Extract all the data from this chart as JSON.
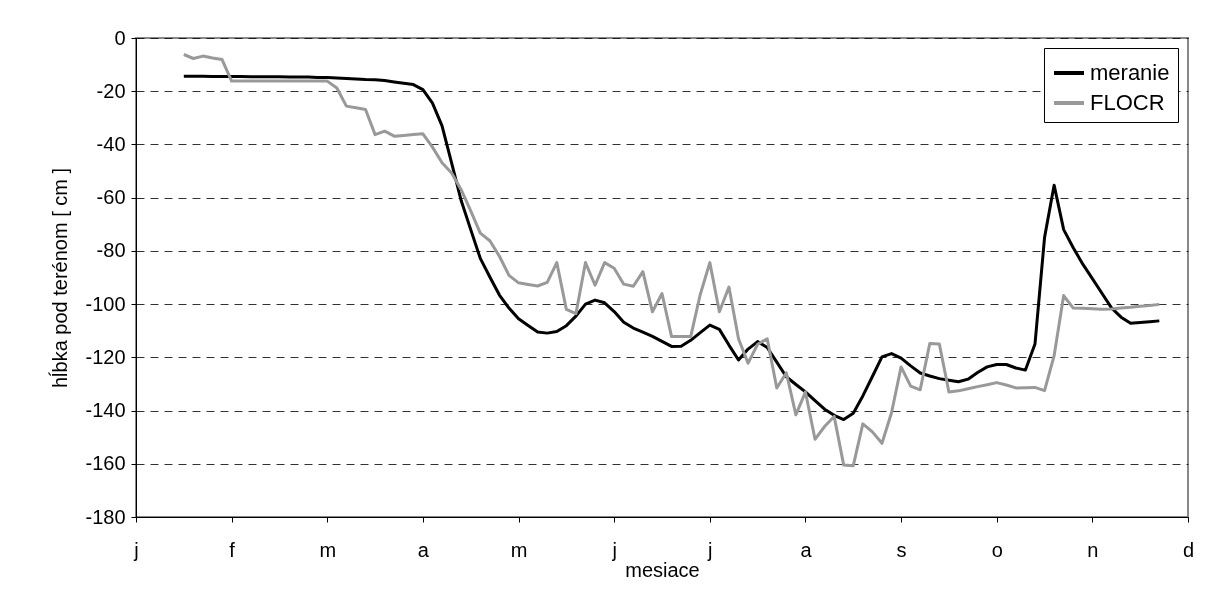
{
  "chart_data": {
    "type": "line",
    "xlabel": "mesiace",
    "ylabel": "hĺbka pod terénom [ cm ]",
    "categories": [
      "j",
      null,
      null,
      null,
      null,
      null,
      null,
      null,
      null,
      null,
      "f",
      null,
      null,
      null,
      null,
      null,
      null,
      null,
      null,
      null,
      "m",
      null,
      null,
      null,
      null,
      null,
      null,
      null,
      null,
      null,
      "a",
      null,
      null,
      null,
      null,
      null,
      null,
      null,
      null,
      null,
      "m",
      null,
      null,
      null,
      null,
      null,
      null,
      null,
      null,
      null,
      "j",
      null,
      null,
      null,
      null,
      null,
      null,
      null,
      null,
      null,
      "j",
      null,
      null,
      null,
      null,
      null,
      null,
      null,
      null,
      null,
      "a",
      null,
      null,
      null,
      null,
      null,
      null,
      null,
      null,
      null,
      "s",
      null,
      null,
      null,
      null,
      null,
      null,
      null,
      null,
      null,
      "o",
      null,
      null,
      null,
      null,
      null,
      null,
      null,
      null,
      null,
      "n",
      null,
      null,
      null,
      null,
      null,
      null,
      null,
      null,
      null,
      "d"
    ],
    "ylim": [
      -180,
      0
    ],
    "yticks": [
      -180,
      -160,
      -140,
      -120,
      -100,
      -80,
      -60,
      -40,
      -20,
      0
    ],
    "grid": "y",
    "legend": "top right",
    "marker": "none",
    "line_style": "solid",
    "series": [
      {
        "name": "meranie",
        "color": "#000000",
        "values": [
          null,
          null,
          null,
          null,
          null,
          -14.4,
          -14.4,
          -14.4,
          -14.5,
          -14.5,
          -14.5,
          -14.5,
          -14.6,
          -14.6,
          -14.6,
          -14.6,
          -14.7,
          -14.7,
          -14.7,
          -14.8,
          -14.8,
          -15.0,
          -15.2,
          -15.4,
          -15.6,
          -15.7,
          -16.0,
          -16.5,
          -17.0,
          -17.5,
          -19.4,
          -24.5,
          -33,
          -46.9,
          -61.1,
          -72,
          -82.8,
          -89.8,
          -96.6,
          -101.5,
          -105.5,
          -108,
          -110.5,
          -110.9,
          -110.3,
          -108.1,
          -104.5,
          -100,
          -98.5,
          -99.5,
          -102.8,
          -106.8,
          -109,
          -110.5,
          -112.1,
          -114,
          -115.9,
          -115.8,
          -113.6,
          -110.7,
          -107.9,
          -109.5,
          -115.4,
          -121,
          -116.9,
          -114.1,
          -116.3,
          -121.8,
          -127.3,
          -130.2,
          -133,
          -136.3,
          -139.5,
          -141.8,
          -143.4,
          -141,
          -134.5,
          -127.2,
          -119.8,
          -118.6,
          -120.3,
          -123.2,
          -125.9,
          -127,
          -128,
          -128.6,
          -129.2,
          -128.2,
          -125.7,
          -123.6,
          -122.7,
          -122.7,
          -124,
          -124.8,
          -115,
          -75,
          -55.3,
          -72,
          -78.8,
          -85,
          -90.4,
          -95.9,
          -101.4,
          -104.9,
          -107.2,
          -106.9,
          -106.6,
          -106.3,
          null,
          null,
          null
        ]
      },
      {
        "name": "FLOCR",
        "color": "#999999",
        "values": [
          null,
          null,
          null,
          null,
          null,
          -6.2,
          -7.7,
          -6.8,
          -7.5,
          -8.1,
          -16.2,
          -16.2,
          -16.2,
          -16.2,
          -16.2,
          -16.2,
          -16.2,
          -16.2,
          -16.2,
          -16.2,
          -16.2,
          -18.8,
          -25.6,
          -26.2,
          -26.9,
          -36.3,
          -35,
          -36.9,
          -36.6,
          -36.3,
          -36,
          -41,
          -46.9,
          -50.7,
          -57,
          -65,
          -73.3,
          -76.2,
          -82,
          -89.2,
          -92,
          -92.6,
          -93.2,
          -91.8,
          -84.4,
          -102,
          -103.6,
          -84.4,
          -92.9,
          -84.4,
          -86.5,
          -92.5,
          -93.3,
          -87.8,
          -102.9,
          -96,
          -112.2,
          -112.2,
          -112.2,
          -96.4,
          -84.4,
          -102.9,
          -93.6,
          -113,
          -122.2,
          -115.1,
          -113,
          -131.5,
          -125.8,
          -141.6,
          -133,
          -150.8,
          -146,
          -142.2,
          -160.5,
          -160.7,
          -145,
          -148,
          -152.3,
          -140.8,
          -123.6,
          -130.8,
          -132.2,
          -114.8,
          -115,
          -133,
          -132.6,
          -131.8,
          -131,
          -130.3,
          -129.5,
          -130.4,
          -131.5,
          -131.4,
          -131.3,
          -132.5,
          -119.4,
          -96.8,
          -101.5,
          -101.6,
          -101.7,
          -101.9,
          -101.8,
          -101.5,
          -101.2,
          -100.8,
          -100.5,
          -100.1,
          null,
          null,
          null
        ]
      }
    ]
  }
}
